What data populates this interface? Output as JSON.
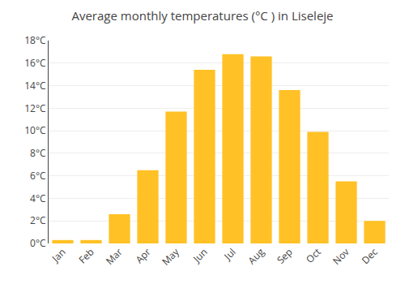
{
  "chart_data": {
    "type": "bar",
    "title": "Average monthly temperatures (°C ) in Liseleje",
    "categories": [
      "Jan",
      "Feb",
      "Mar",
      "Apr",
      "May",
      "Jun",
      "Jul",
      "Aug",
      "Sep",
      "Oct",
      "Nov",
      "Dec"
    ],
    "values": [
      0.3,
      0.3,
      2.6,
      6.5,
      11.7,
      15.4,
      16.8,
      16.6,
      13.6,
      9.9,
      5.5,
      2.0
    ],
    "color": "#FFC125",
    "ylim": [
      0,
      18
    ],
    "yticks": [
      {
        "value": 0,
        "label": "0°C"
      },
      {
        "value": 2,
        "label": "2°C"
      },
      {
        "value": 4,
        "label": "4°C"
      },
      {
        "value": 6,
        "label": "6°C"
      },
      {
        "value": 8,
        "label": "8°C"
      },
      {
        "value": 10,
        "label": "10°C"
      },
      {
        "value": 12,
        "label": "12°C"
      },
      {
        "value": 14,
        "label": "14°C"
      },
      {
        "value": 16,
        "label": "16°C"
      },
      {
        "value": 18,
        "label": "18°C"
      }
    ],
    "grid": true
  }
}
